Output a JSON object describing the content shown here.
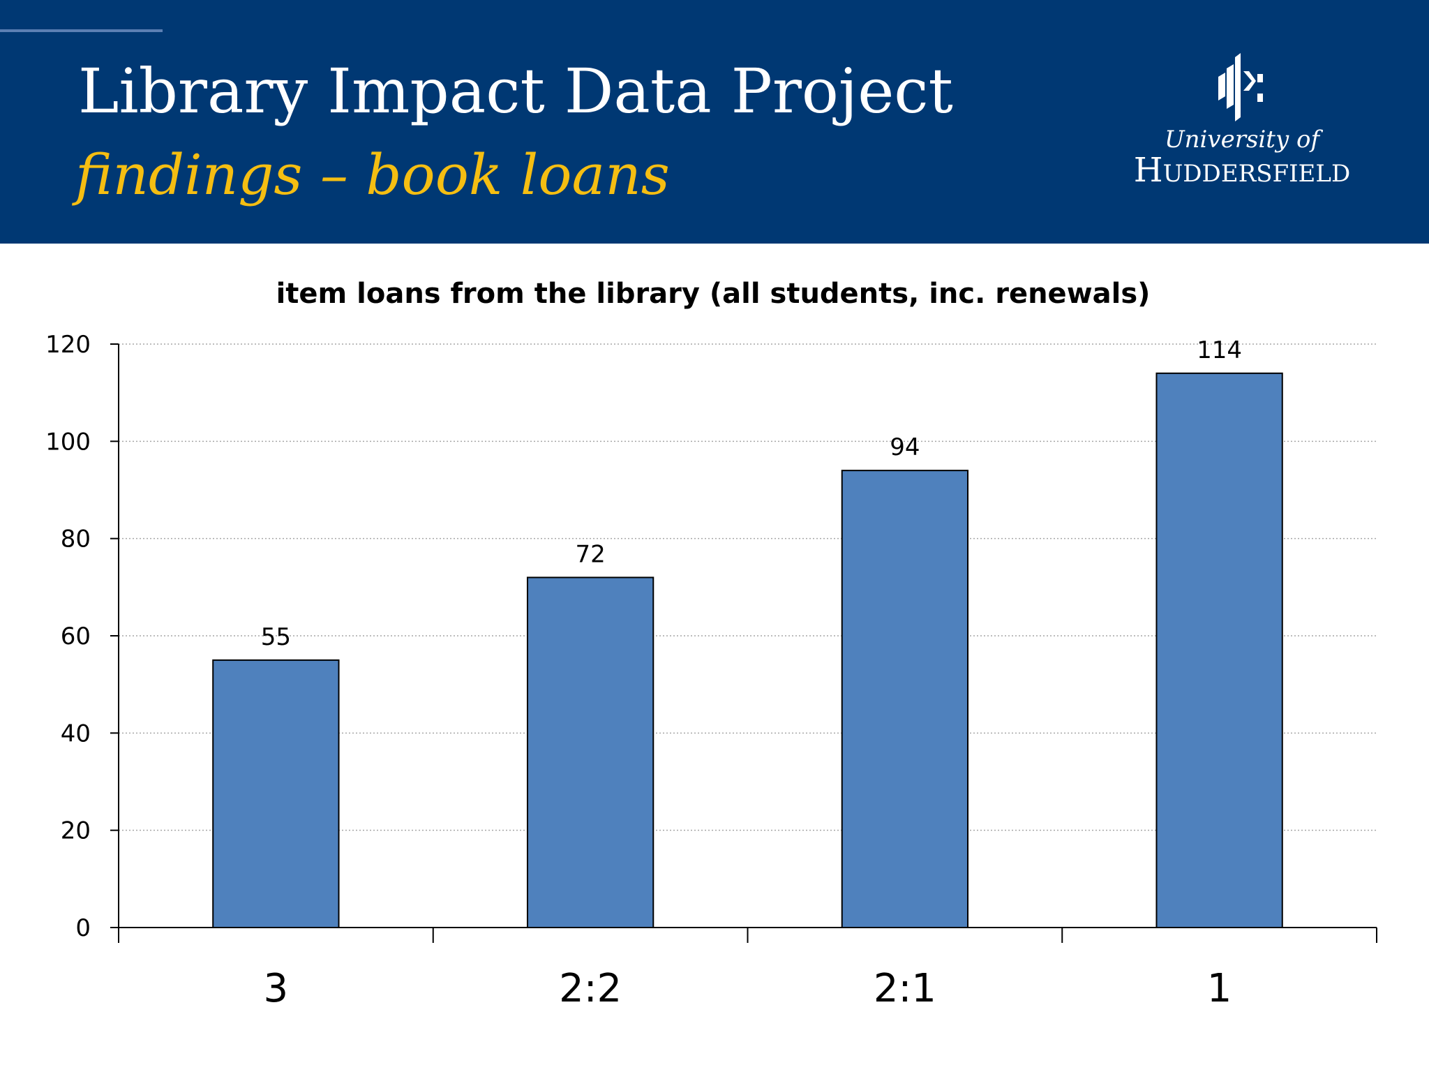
{
  "header": {
    "title": "Library Impact Data Project",
    "subtitle": "findings – book loans",
    "logo": {
      "line1": "University of",
      "line2": "Huddersfield"
    },
    "colors": {
      "background": "#003873",
      "title": "#ffffff",
      "subtitle": "#f5be12"
    }
  },
  "chart_data": {
    "type": "bar",
    "title": "item loans from the library (all students, inc. renewals)",
    "categories": [
      "3",
      "2:2",
      "2:1",
      "1"
    ],
    "values": [
      55,
      72,
      94,
      114
    ],
    "data_labels": [
      "55",
      "72",
      "94",
      "114"
    ],
    "xlabel": "",
    "ylabel": "",
    "ylim": [
      0,
      120
    ],
    "yticks": [
      0,
      20,
      40,
      60,
      80,
      100,
      120
    ],
    "grid": true,
    "legend": "none",
    "bar_color": "#4f81bd"
  }
}
